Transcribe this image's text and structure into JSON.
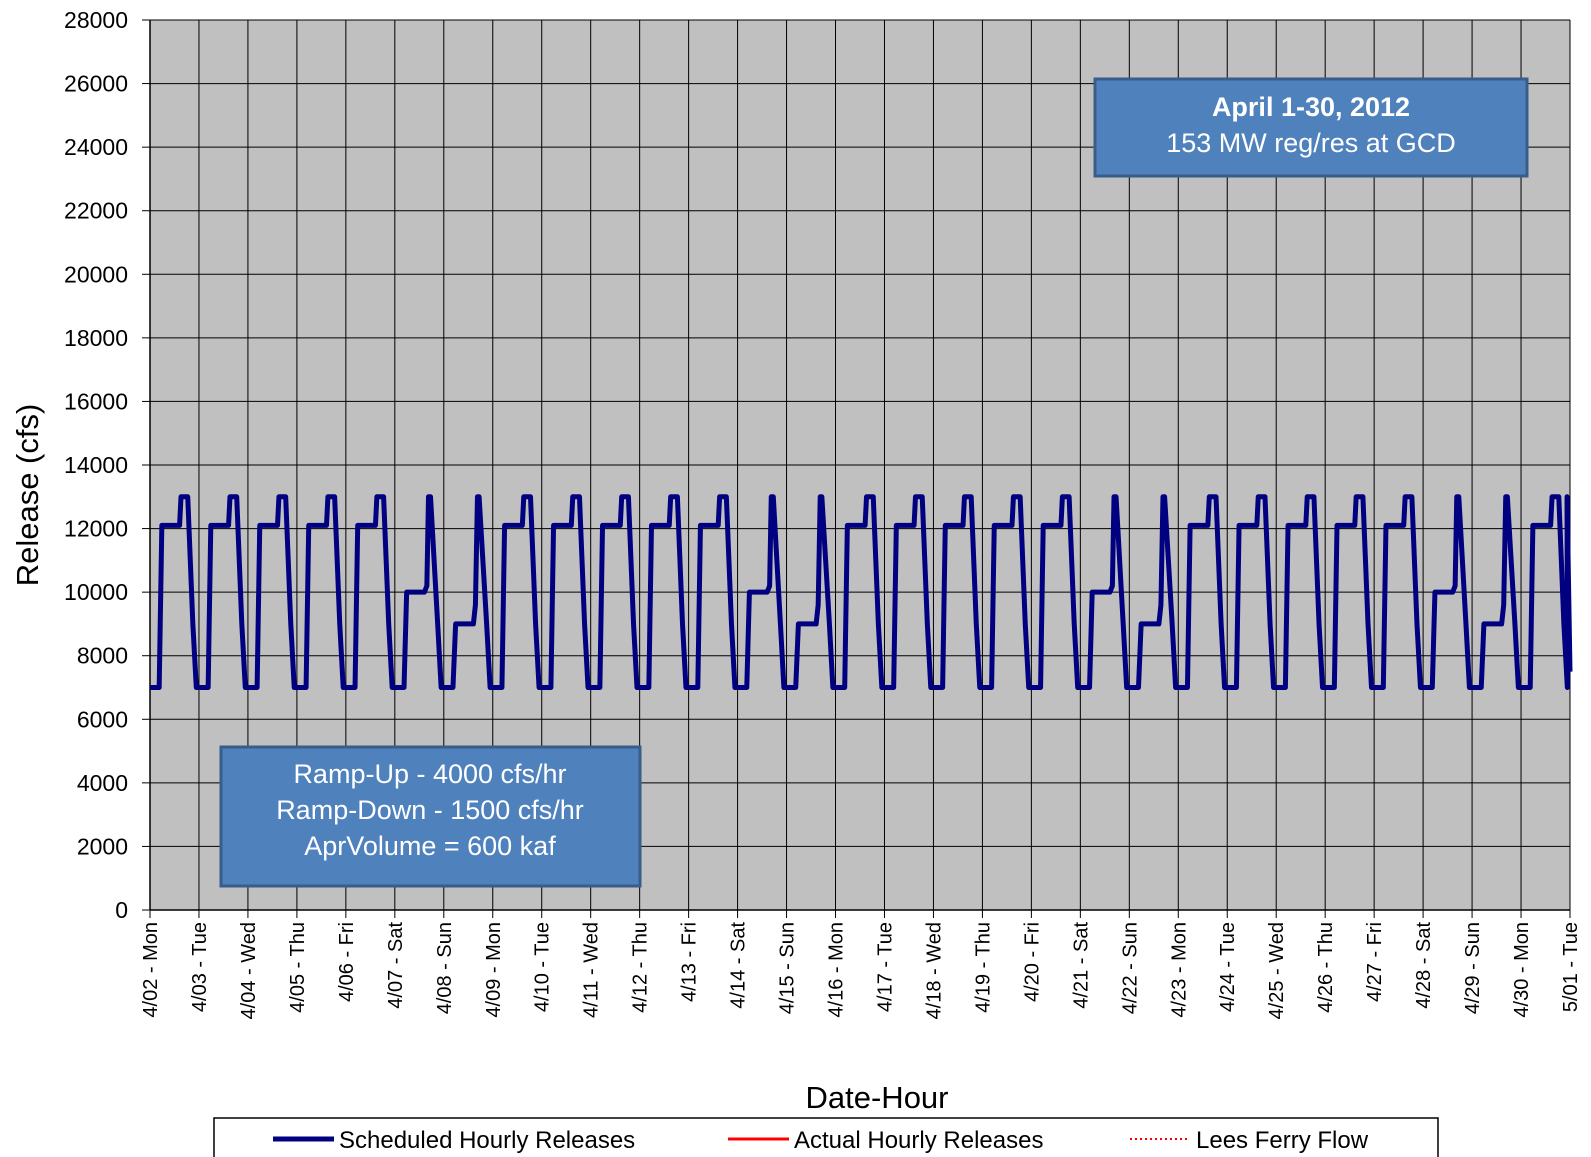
{
  "chart_data": {
    "type": "line",
    "title": "",
    "xlabel": "Date-Hour",
    "ylabel": "Release  (cfs)",
    "ylim": [
      0,
      28000
    ],
    "yticks": [
      0,
      2000,
      4000,
      6000,
      8000,
      10000,
      12000,
      14000,
      16000,
      18000,
      20000,
      22000,
      24000,
      26000,
      28000
    ],
    "xrange": [
      "4/02 - Mon",
      "5/01 - Tue"
    ],
    "xticks": [
      "4/02 - Mon",
      "4/03 - Tue",
      "4/04 - Wed",
      "4/05 - Thu",
      "4/06 - Fri",
      "4/07 - Sat",
      "4/08 - Sun",
      "4/09 - Mon",
      "4/10 - Tue",
      "4/11 - Wed",
      "4/12 - Thu",
      "4/13 - Fri",
      "4/14 - Sat",
      "4/15 - Sun",
      "4/16 - Mon",
      "4/17 - Tue",
      "4/18 - Wed",
      "4/19 - Thu",
      "4/20 - Fri",
      "4/21 - Sat",
      "4/22 - Sun",
      "4/23 - Mon",
      "4/24 - Tue",
      "4/25 - Wed",
      "4/26 - Thu",
      "4/27 - Fri",
      "4/28 - Sat",
      "4/29 - Sun",
      "4/30 - Mon",
      "5/01 - Tue"
    ],
    "grid": true,
    "legend_position": "bottom",
    "colors": {
      "plot_background": "#c0c0c0",
      "grid": "#000000",
      "box_fill": "#4f81bd",
      "box_border": "#385d8a"
    },
    "series": [
      {
        "name": "Scheduled Hourly Releases",
        "color": "#000080",
        "style": "solid",
        "day_profiles": {
          "weekday": [
            [
              0,
              7000
            ],
            [
              4.5,
              7000
            ],
            [
              5.8,
              12100
            ],
            [
              14.5,
              12100
            ],
            [
              15.2,
              13000
            ],
            [
              18.5,
              13000
            ],
            [
              21,
              9000
            ],
            [
              22.7,
              7000
            ],
            [
              24,
              7000
            ]
          ],
          "saturday": [
            [
              0,
              7000
            ],
            [
              4.5,
              7000
            ],
            [
              5.8,
              10000
            ],
            [
              14.5,
              10000
            ],
            [
              15.7,
              10200
            ],
            [
              16.5,
              13000
            ],
            [
              17.5,
              13000
            ],
            [
              21,
              9000
            ],
            [
              22.7,
              7000
            ],
            [
              24,
              7000
            ]
          ],
          "sunday": [
            [
              0,
              7000
            ],
            [
              4.5,
              7000
            ],
            [
              5.8,
              9000
            ],
            [
              14.5,
              9000
            ],
            [
              15.5,
              9600
            ],
            [
              16.5,
              13000
            ],
            [
              17.3,
              13000
            ],
            [
              21,
              9000
            ],
            [
              22.7,
              7000
            ],
            [
              24,
              7000
            ]
          ]
        },
        "days": [
          "weekday",
          "weekday",
          "weekday",
          "weekday",
          "weekday",
          "saturday",
          "sunday",
          "weekday",
          "weekday",
          "weekday",
          "weekday",
          "weekday",
          "saturday",
          "sunday",
          "weekday",
          "weekday",
          "weekday",
          "weekday",
          "weekday",
          "saturday",
          "sunday",
          "weekday",
          "weekday",
          "weekday",
          "weekday",
          "weekday",
          "saturday",
          "sunday",
          "weekday"
        ],
        "end_value": 7500
      },
      {
        "name": "Actual Hourly Releases",
        "color": "#ff0000",
        "style": "solid",
        "values": []
      },
      {
        "name": "Lees Ferry Flow",
        "color": "#ff0000",
        "style": "dotted",
        "values": []
      }
    ],
    "annotations": [
      {
        "lines": [
          "April 1-30, 2012",
          "153 MW reg/res at GCD"
        ],
        "first_line_bold": true
      },
      {
        "lines": [
          "Ramp-Up - 4000 cfs/hr",
          "Ramp-Down - 1500 cfs/hr",
          "AprVolume = 600 kaf"
        ],
        "first_line_bold": false
      }
    ]
  }
}
